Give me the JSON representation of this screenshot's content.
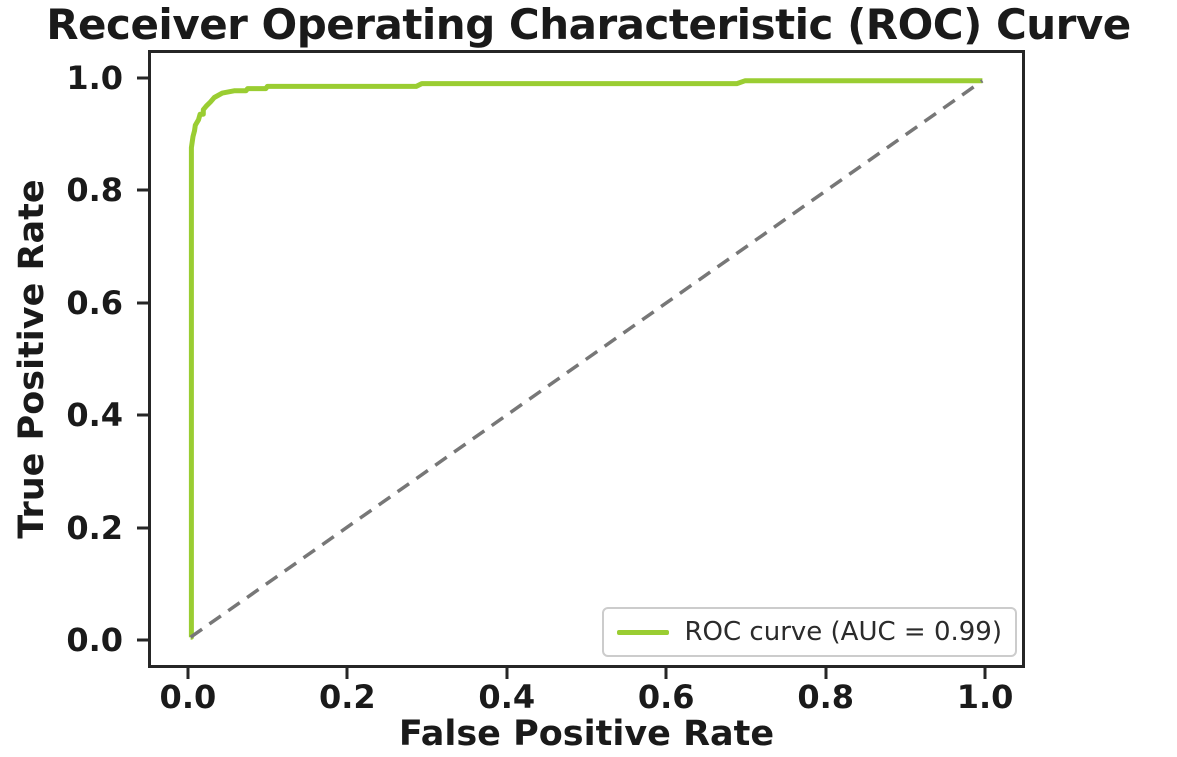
{
  "figure": {
    "title": "Receiver Operating Characteristic (ROC) Curve"
  },
  "chart_data": {
    "type": "line",
    "title": "Receiver Operating Characteristic (ROC) Curve",
    "xlabel": "False Positive Rate",
    "ylabel": "True Positive Rate",
    "xlim": [
      -0.05,
      1.05
    ],
    "ylim": [
      -0.05,
      1.05
    ],
    "xticks": [
      0.0,
      0.2,
      0.4,
      0.6,
      0.8,
      1.0
    ],
    "xtick_labels": [
      "0.0",
      "0.2",
      "0.4",
      "0.6",
      "0.8",
      "1.0"
    ],
    "yticks": [
      0.0,
      0.2,
      0.4,
      0.6,
      0.8,
      1.0
    ],
    "ytick_labels": [
      "0.0",
      "0.2",
      "0.4",
      "0.6",
      "0.8",
      "1.0"
    ],
    "grid": false,
    "auc": 0.99,
    "legend": {
      "position": "lower right",
      "entries": [
        {
          "label": "ROC curve (AUC = 0.99)",
          "color": "#9acd32",
          "style": "solid"
        }
      ]
    },
    "series": [
      {
        "name": "ROC curve (AUC = 0.99)",
        "color": "#9acd32",
        "style": "solid",
        "stroke_width": 5,
        "x": [
          0.0,
          0.001,
          0.001,
          0.003,
          0.005,
          0.006,
          0.008,
          0.01,
          0.012,
          0.016,
          0.016,
          0.02,
          0.025,
          0.03,
          0.04,
          0.055,
          0.07,
          0.072,
          0.095,
          0.097,
          0.285,
          0.292,
          0.69,
          0.7,
          1.0
        ],
        "y": [
          0.0,
          0.0,
          0.88,
          0.9,
          0.91,
          0.92,
          0.925,
          0.93,
          0.94,
          0.94,
          0.948,
          0.955,
          0.962,
          0.97,
          0.978,
          0.982,
          0.982,
          0.986,
          0.986,
          0.99,
          0.99,
          0.995,
          0.995,
          1.0,
          1.0
        ]
      },
      {
        "name": "chance-diagonal",
        "color": "#777777",
        "style": "dashed",
        "stroke_width": 3.5,
        "x": [
          0.0,
          1.0
        ],
        "y": [
          0.0,
          1.0
        ]
      }
    ]
  }
}
